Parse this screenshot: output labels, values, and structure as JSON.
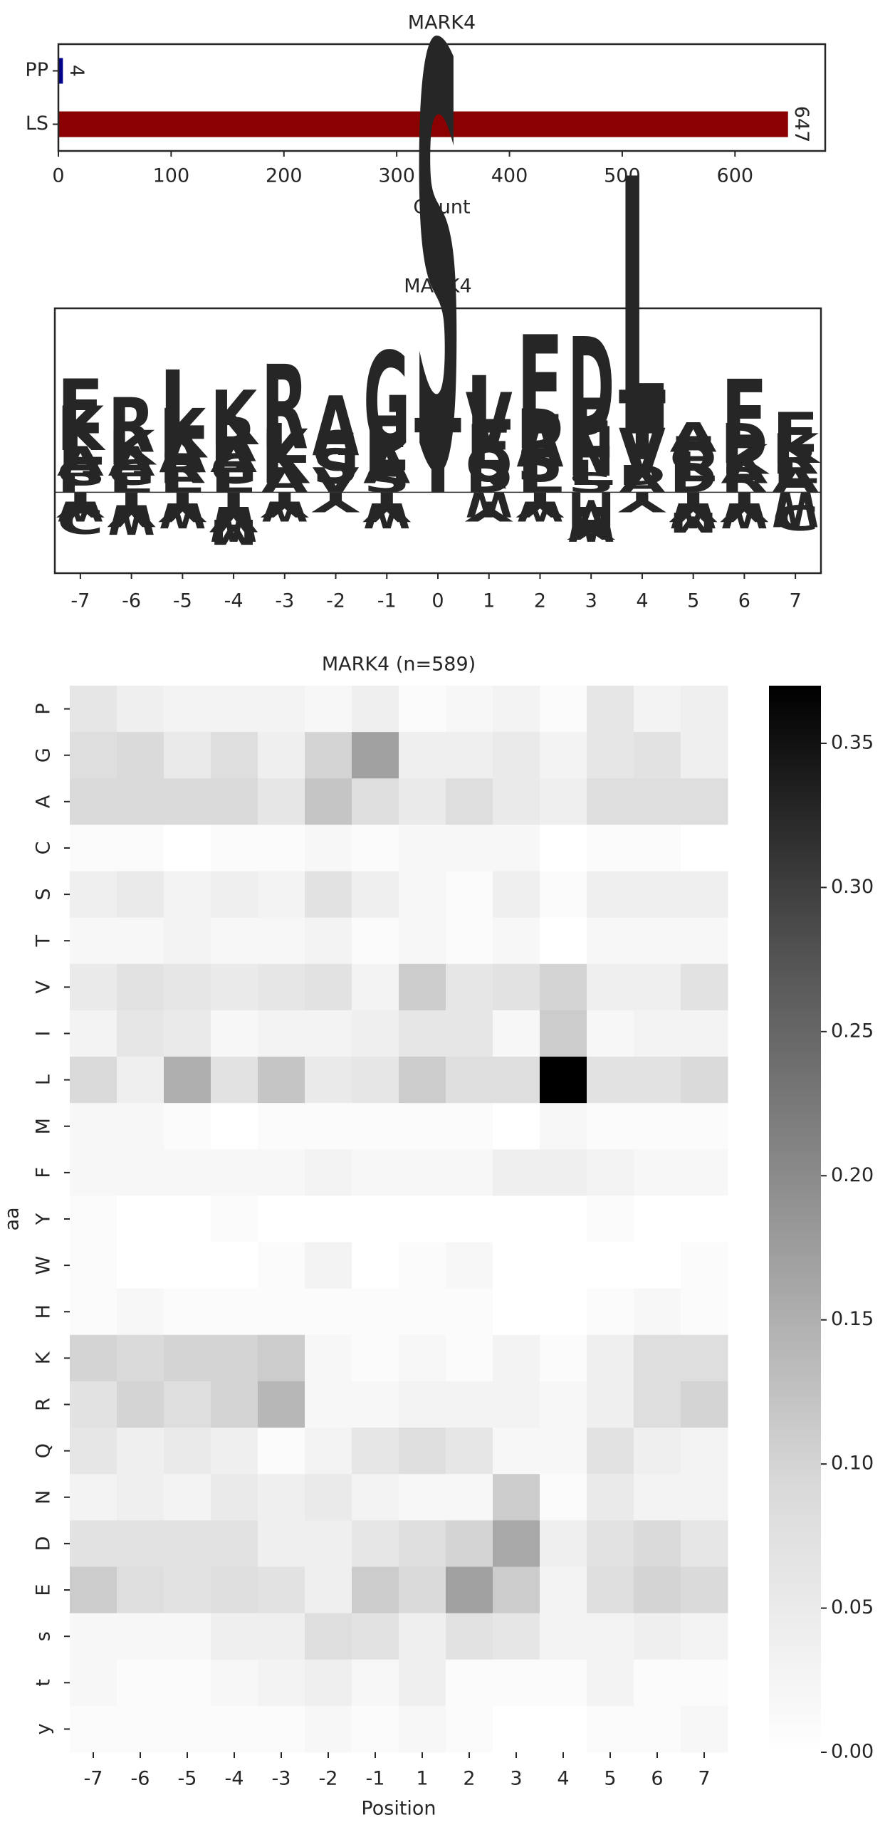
{
  "chart_data": [
    {
      "type": "barh",
      "title": "MARK4",
      "categories": [
        "PP",
        "LS"
      ],
      "values": [
        4,
        647
      ],
      "colors": [
        "#00008b",
        "#8b0000"
      ],
      "xlabel": "Count",
      "xlim": [
        0,
        680
      ],
      "xticks": [
        0,
        100,
        200,
        300,
        400,
        500,
        600
      ]
    },
    {
      "type": "logo",
      "title": "MARK4",
      "positions": [
        -7,
        -6,
        -5,
        -4,
        -3,
        -2,
        -1,
        0,
        1,
        2,
        3,
        4,
        5,
        6,
        7
      ],
      "ylim": [
        -0.44,
        1.0
      ],
      "colors": {
        "E": "#e0204a",
        "D": "#e0204a",
        "K": "#1a1aff",
        "R": "#1a1aff",
        "H": "#1a1aff",
        "L": "#daa520",
        "V": "#daa520",
        "I": "#daa520",
        "M": "#daa520",
        "W": "#daa520",
        "C": "#daa520",
        "F": "#daa520",
        "A": "#1f8a1f",
        "G": "#1f8a1f",
        "S": "#8b008b",
        "T": "#8b008b",
        "N": "#a040d0",
        "Q": "#a040d0",
        "Y": "#8b3a10",
        "P": "#111111"
      },
      "letters": [
        [
          {
            "aa": "E",
            "height": 0.11
          },
          {
            "aa": "K",
            "height": 0.09
          },
          {
            "aa": "L",
            "height": 0.08
          },
          {
            "aa": "A",
            "height": 0.06
          },
          {
            "aa": "G",
            "height": 0.05
          },
          {
            "aa": "P",
            "height": 0.04
          },
          {
            "aa": "Y",
            "height": -0.05
          },
          {
            "aa": "W",
            "height": -0.04
          },
          {
            "aa": "C",
            "height": -0.05
          }
        ],
        [
          {
            "aa": "R",
            "height": 0.11
          },
          {
            "aa": "K",
            "height": 0.07
          },
          {
            "aa": "A",
            "height": 0.06
          },
          {
            "aa": "G",
            "height": 0.05
          },
          {
            "aa": "E",
            "height": 0.04
          },
          {
            "aa": "Y",
            "height": -0.07
          },
          {
            "aa": "W",
            "height": -0.06
          }
        ],
        [
          {
            "aa": "L",
            "height": 0.14
          },
          {
            "aa": "K",
            "height": 0.1
          },
          {
            "aa": "A",
            "height": 0.08
          },
          {
            "aa": "R",
            "height": 0.06
          },
          {
            "aa": "E",
            "height": 0.05
          },
          {
            "aa": "Y",
            "height": -0.06
          },
          {
            "aa": "W",
            "height": -0.05
          }
        ],
        [
          {
            "aa": "K",
            "height": 0.11
          },
          {
            "aa": "R",
            "height": 0.09
          },
          {
            "aa": "A",
            "height": 0.06
          },
          {
            "aa": "G",
            "height": 0.06
          },
          {
            "aa": "E",
            "height": 0.05
          },
          {
            "aa": "Y",
            "height": -0.08
          },
          {
            "aa": "W",
            "height": -0.07
          },
          {
            "aa": "M",
            "height": -0.05
          }
        ],
        [
          {
            "aa": "R",
            "height": 0.17
          },
          {
            "aa": "L",
            "height": 0.08
          },
          {
            "aa": "K",
            "height": 0.11
          },
          {
            "aa": "A",
            "height": 0.05
          },
          {
            "aa": "Y",
            "height": -0.05
          },
          {
            "aa": "W",
            "height": -0.04
          }
        ],
        [
          {
            "aa": "A",
            "height": 0.12
          },
          {
            "aa": "G",
            "height": 0.08
          },
          {
            "aa": "S",
            "height": 0.07
          },
          {
            "aa": "V",
            "height": 0.05
          },
          {
            "aa": "Y",
            "height": -0.04
          }
        ],
        [
          {
            "aa": "G",
            "height": 0.2
          },
          {
            "aa": "E",
            "height": 0.11
          },
          {
            "aa": "A",
            "height": 0.07
          },
          {
            "aa": "S",
            "height": 0.05
          },
          {
            "aa": "Y",
            "height": -0.06
          },
          {
            "aa": "W",
            "height": -0.05
          }
        ],
        [
          {
            "aa": "S",
            "height": 0.85
          },
          {
            "aa": "T",
            "height": 0.15
          }
        ],
        [
          {
            "aa": "L",
            "height": 0.11
          },
          {
            "aa": "V",
            "height": 0.12
          },
          {
            "aa": "E",
            "height": 0.09
          },
          {
            "aa": "Q",
            "height": 0.07
          },
          {
            "aa": "D",
            "height": 0.06
          },
          {
            "aa": "W",
            "height": -0.05
          },
          {
            "aa": "Y",
            "height": -0.04
          }
        ],
        [
          {
            "aa": "E",
            "height": 0.2
          },
          {
            "aa": "D",
            "height": 0.08
          },
          {
            "aa": "A",
            "height": 0.1
          },
          {
            "aa": "S",
            "height": 0.08
          },
          {
            "aa": "L",
            "height": 0.06
          },
          {
            "aa": "Y",
            "height": -0.05
          },
          {
            "aa": "W",
            "height": -0.04
          }
        ],
        [
          {
            "aa": "D",
            "height": 0.2
          },
          {
            "aa": "E",
            "height": 0.12
          },
          {
            "aa": "N",
            "height": 0.1
          },
          {
            "aa": "L",
            "height": 0.05
          },
          {
            "aa": "S",
            "height": 0.04
          },
          {
            "aa": "M",
            "height": -0.08
          },
          {
            "aa": "W",
            "height": -0.07
          },
          {
            "aa": "Y",
            "height": -0.04
          }
        ],
        [
          {
            "aa": "L",
            "height": 0.52
          },
          {
            "aa": "T",
            "height": 0.14
          },
          {
            "aa": "V",
            "height": 0.1
          },
          {
            "aa": "D",
            "height": 0.04
          },
          {
            "aa": "A",
            "height": 0.04
          },
          {
            "aa": "Y",
            "height": -0.04
          }
        ],
        [
          {
            "aa": "A",
            "height": 0.06
          },
          {
            "aa": "E",
            "height": 0.05
          },
          {
            "aa": "Q",
            "height": 0.05
          },
          {
            "aa": "L",
            "height": 0.06
          },
          {
            "aa": "D",
            "height": 0.06
          },
          {
            "aa": "Y",
            "height": -0.06
          },
          {
            "aa": "W",
            "height": -0.05
          },
          {
            "aa": "M",
            "height": -0.04
          }
        ],
        [
          {
            "aa": "E",
            "height": 0.14
          },
          {
            "aa": "D",
            "height": 0.08
          },
          {
            "aa": "K",
            "height": 0.06
          },
          {
            "aa": "A",
            "height": 0.05
          },
          {
            "aa": "R",
            "height": 0.05
          },
          {
            "aa": "Y",
            "height": -0.06
          },
          {
            "aa": "W",
            "height": -0.05
          }
        ],
        [
          {
            "aa": "E",
            "height": 0.08
          },
          {
            "aa": "K",
            "height": 0.06
          },
          {
            "aa": "R",
            "height": 0.06
          },
          {
            "aa": "L",
            "height": 0.05
          },
          {
            "aa": "A",
            "height": 0.05
          },
          {
            "aa": "W",
            "height": -0.07
          },
          {
            "aa": "C",
            "height": -0.05
          }
        ]
      ]
    },
    {
      "type": "heatmap",
      "title": "MARK4 (n=589)",
      "xlabel": "Position",
      "ylabel": "aa",
      "x": [
        -7,
        -6,
        -5,
        -4,
        -3,
        -2,
        -1,
        1,
        2,
        3,
        4,
        5,
        6,
        7
      ],
      "rows": [
        "P",
        "G",
        "A",
        "C",
        "S",
        "T",
        "V",
        "I",
        "L",
        "M",
        "F",
        "Y",
        "W",
        "H",
        "K",
        "R",
        "Q",
        "N",
        "D",
        "E",
        "s",
        "t",
        "y"
      ],
      "colormap": "Greys",
      "clim": [
        0,
        0.37
      ],
      "cticks": [
        {
          "value": 0,
          "label": "0.00"
        },
        {
          "value": 0.05,
          "label": "0.05"
        },
        {
          "value": 0.1,
          "label": "0.10"
        },
        {
          "value": 0.15,
          "label": "0.15"
        },
        {
          "value": 0.2,
          "label": "0.20"
        },
        {
          "value": 0.25,
          "label": "0.25"
        },
        {
          "value": 0.3,
          "label": "0.30"
        },
        {
          "value": 0.35,
          "label": "0.35"
        }
      ],
      "values": [
        [
          0.06,
          0.04,
          0.03,
          0.03,
          0.03,
          0.02,
          0.04,
          0.01,
          0.02,
          0.03,
          0.01,
          0.06,
          0.03,
          0.04
        ],
        [
          0.08,
          0.09,
          0.05,
          0.08,
          0.04,
          0.1,
          0.17,
          0.04,
          0.04,
          0.05,
          0.03,
          0.06,
          0.07,
          0.04
        ],
        [
          0.09,
          0.09,
          0.09,
          0.09,
          0.06,
          0.12,
          0.08,
          0.05,
          0.08,
          0.05,
          0.04,
          0.08,
          0.08,
          0.08
        ],
        [
          0.01,
          0.01,
          0,
          0.01,
          0.01,
          0.02,
          0.01,
          0.02,
          0.02,
          0.02,
          0,
          0.01,
          0.01,
          0
        ],
        [
          0.04,
          0.05,
          0.03,
          0.04,
          0.03,
          0.07,
          0.04,
          0.02,
          0.01,
          0.04,
          0.01,
          0.04,
          0.04,
          0.04
        ],
        [
          0.02,
          0.02,
          0.03,
          0.02,
          0.02,
          0.03,
          0.01,
          0.02,
          0.01,
          0.02,
          0,
          0.02,
          0.02,
          0.02
        ],
        [
          0.05,
          0.07,
          0.06,
          0.05,
          0.06,
          0.07,
          0.03,
          0.11,
          0.06,
          0.07,
          0.1,
          0.04,
          0.04,
          0.07
        ],
        [
          0.03,
          0.06,
          0.05,
          0.02,
          0.03,
          0.03,
          0.04,
          0.06,
          0.06,
          0.02,
          0.11,
          0.02,
          0.03,
          0.03
        ],
        [
          0.09,
          0.04,
          0.15,
          0.07,
          0.12,
          0.05,
          0.06,
          0.11,
          0.08,
          0.08,
          0.37,
          0.07,
          0.07,
          0.09
        ],
        [
          0.02,
          0.02,
          0.01,
          0,
          0.01,
          0.01,
          0.01,
          0.01,
          0.01,
          0,
          0.02,
          0.01,
          0.01,
          0.01
        ],
        [
          0.02,
          0.02,
          0.02,
          0.02,
          0.02,
          0.03,
          0.02,
          0.02,
          0.02,
          0.04,
          0.04,
          0.03,
          0.02,
          0.02
        ],
        [
          0.01,
          0,
          0,
          0.01,
          0,
          0,
          0,
          0,
          0,
          0,
          0,
          0.01,
          0,
          0
        ],
        [
          0.01,
          0,
          0,
          0,
          0.01,
          0.03,
          0,
          0.01,
          0.02,
          0,
          0,
          0,
          0,
          0.01
        ],
        [
          0.01,
          0.02,
          0.01,
          0.01,
          0.01,
          0.01,
          0.01,
          0.01,
          0.01,
          0,
          0,
          0.01,
          0.02,
          0.01
        ],
        [
          0.1,
          0.09,
          0.1,
          0.1,
          0.11,
          0.02,
          0.01,
          0.02,
          0.01,
          0.03,
          0.01,
          0.04,
          0.08,
          0.08
        ],
        [
          0.07,
          0.1,
          0.08,
          0.1,
          0.14,
          0.02,
          0.02,
          0.03,
          0.03,
          0.03,
          0.02,
          0.04,
          0.08,
          0.1
        ],
        [
          0.06,
          0.04,
          0.05,
          0.04,
          0.01,
          0.03,
          0.06,
          0.08,
          0.06,
          0.02,
          0.02,
          0.07,
          0.04,
          0.03
        ],
        [
          0.03,
          0.04,
          0.03,
          0.05,
          0.04,
          0.05,
          0.03,
          0.02,
          0.02,
          0.11,
          0.01,
          0.05,
          0.03,
          0.03
        ],
        [
          0.07,
          0.07,
          0.07,
          0.07,
          0.04,
          0.04,
          0.06,
          0.08,
          0.1,
          0.16,
          0.04,
          0.07,
          0.09,
          0.06
        ],
        [
          0.11,
          0.08,
          0.07,
          0.08,
          0.07,
          0.04,
          0.11,
          0.09,
          0.17,
          0.11,
          0.03,
          0.08,
          0.1,
          0.09
        ],
        [
          0.02,
          0.02,
          0.02,
          0.04,
          0.04,
          0.08,
          0.07,
          0.04,
          0.07,
          0.06,
          0.03,
          0.03,
          0.04,
          0.03
        ],
        [
          0.02,
          0.01,
          0.01,
          0.02,
          0.03,
          0.04,
          0.02,
          0.04,
          0.01,
          0.01,
          0.01,
          0.03,
          0.01,
          0.01
        ],
        [
          0.01,
          0.01,
          0.01,
          0.01,
          0.01,
          0.02,
          0.01,
          0.02,
          0.01,
          0,
          0,
          0.01,
          0.01,
          0.02
        ]
      ]
    }
  ]
}
